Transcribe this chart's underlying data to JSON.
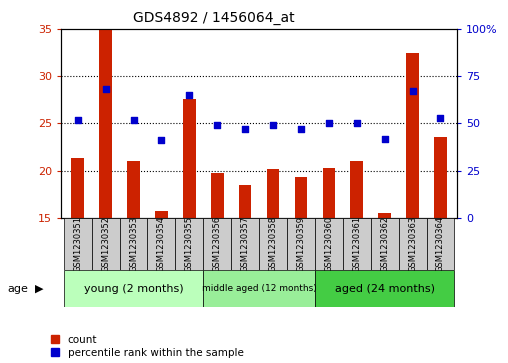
{
  "title": "GDS4892 / 1456064_at",
  "samples": [
    "GSM1230351",
    "GSM1230352",
    "GSM1230353",
    "GSM1230354",
    "GSM1230355",
    "GSM1230356",
    "GSM1230357",
    "GSM1230358",
    "GSM1230359",
    "GSM1230360",
    "GSM1230361",
    "GSM1230362",
    "GSM1230363",
    "GSM1230364"
  ],
  "counts": [
    21.3,
    35.0,
    21.0,
    15.7,
    27.6,
    19.7,
    18.5,
    20.2,
    19.3,
    20.3,
    21.0,
    15.5,
    32.5,
    23.6
  ],
  "percentiles_pct": [
    52,
    68,
    52,
    41,
    65,
    49,
    47,
    49,
    47,
    50,
    50,
    42,
    67,
    53
  ],
  "ylim_left": [
    15,
    35
  ],
  "ylim_right": [
    0,
    100
  ],
  "yticks_left": [
    15,
    20,
    25,
    30,
    35
  ],
  "yticks_right": [
    0,
    25,
    50,
    75,
    100
  ],
  "bar_color": "#CC2200",
  "dot_color": "#0000CC",
  "bar_width": 0.45,
  "tick_label_color_left": "#CC2200",
  "tick_label_color_right": "#0000CC",
  "legend_count_label": "count",
  "legend_pct_label": "percentile rank within the sample",
  "age_label": "age",
  "group_young_color": "#BBFFBB",
  "group_middle_color": "#99EE99",
  "group_aged_color": "#44CC44",
  "xlabel_bg": "#CCCCCC"
}
